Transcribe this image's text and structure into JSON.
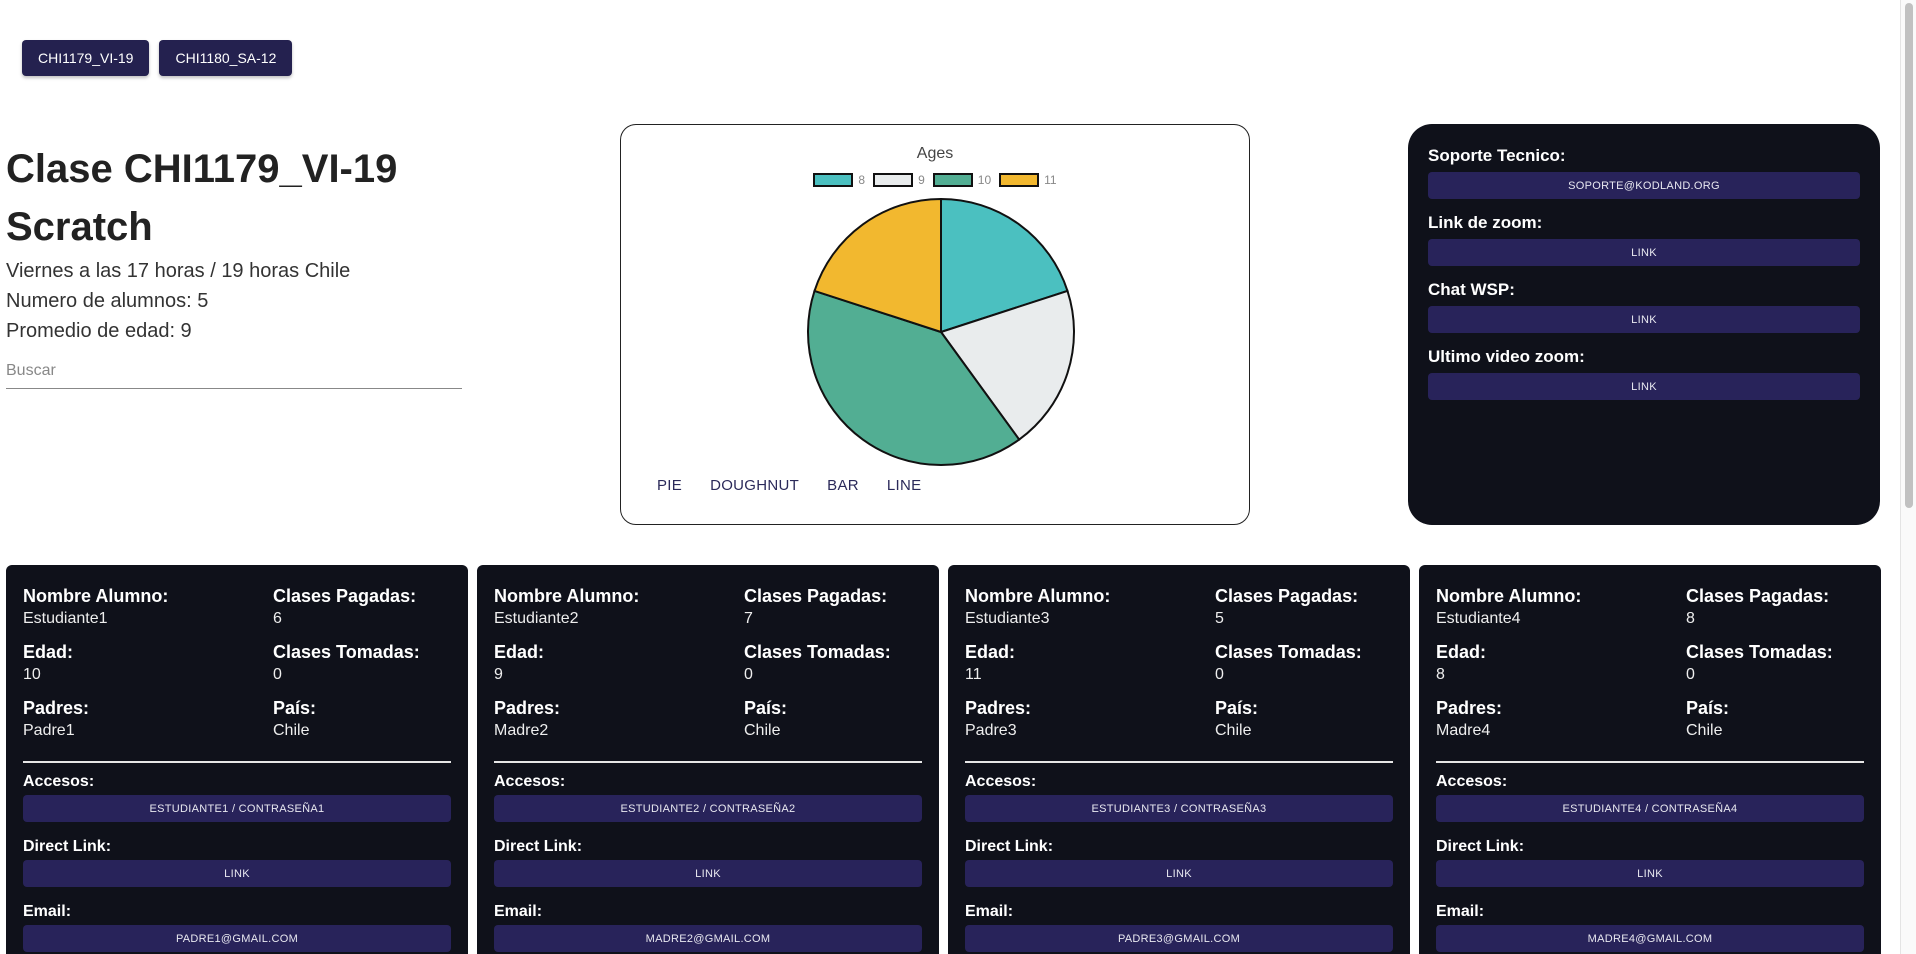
{
  "class_tabs": [
    {
      "label": "CHI1179_VI-19"
    },
    {
      "label": "CHI1180_SA-12"
    }
  ],
  "class_info": {
    "title": "Clase CHI1179_VI-19",
    "subject": "Scratch",
    "schedule": "Viernes a las 17 horas / 19 horas Chile",
    "students_count": "Numero de alumnos: 5",
    "average_age": "Promedio de edad: 9",
    "search_placeholder": "Buscar"
  },
  "chart_types": [
    {
      "label": "PIE"
    },
    {
      "label": "DOUGHNUT"
    },
    {
      "label": "BAR"
    },
    {
      "label": "LINE"
    }
  ],
  "chart_data": {
    "type": "pie",
    "title": "Ages",
    "categories": [
      "8",
      "9",
      "10",
      "11"
    ],
    "values": [
      1,
      1,
      2,
      1
    ],
    "colors": [
      "#4bc0c0",
      "#e9eced",
      "#52ae93",
      "#f2b82f"
    ],
    "legend_position": "top"
  },
  "support": {
    "items": [
      {
        "label": "Soporte Tecnico:",
        "value": "SOPORTE@KODLAND.ORG"
      },
      {
        "label": "Link de zoom:",
        "value": "LINK"
      },
      {
        "label": "Chat WSP:",
        "value": "LINK"
      },
      {
        "label": "Ultimo video zoom:",
        "value": "LINK"
      }
    ]
  },
  "student_labels": {
    "name": "Nombre Alumno:",
    "paid": "Clases Pagadas:",
    "age": "Edad:",
    "taken": "Clases Tomadas:",
    "parents": "Padres:",
    "country": "País:",
    "access": "Accesos:",
    "direct_link": "Direct Link:",
    "email": "Email:"
  },
  "students": [
    {
      "name": "Estudiante1",
      "paid": "6",
      "age": "10",
      "taken": "0",
      "parents": "Padre1",
      "country": "Chile",
      "access": "ESTUDIANTE1 / CONTRASEÑA1",
      "direct_link": "LINK",
      "email": "PADRE1@GMAIL.COM"
    },
    {
      "name": "Estudiante2",
      "paid": "7",
      "age": "9",
      "taken": "0",
      "parents": "Madre2",
      "country": "Chile",
      "access": "ESTUDIANTE2 / CONTRASEÑA2",
      "direct_link": "LINK",
      "email": "MADRE2@GMAIL.COM"
    },
    {
      "name": "Estudiante3",
      "paid": "5",
      "age": "11",
      "taken": "0",
      "parents": "Padre3",
      "country": "Chile",
      "access": "ESTUDIANTE3 / CONTRASEÑA3",
      "direct_link": "LINK",
      "email": "PADRE3@GMAIL.COM"
    },
    {
      "name": "Estudiante4",
      "paid": "8",
      "age": "8",
      "taken": "0",
      "parents": "Madre4",
      "country": "Chile",
      "access": "ESTUDIANTE4 / CONTRASEÑA4",
      "direct_link": "LINK",
      "email": "MADRE4@GMAIL.COM"
    }
  ]
}
